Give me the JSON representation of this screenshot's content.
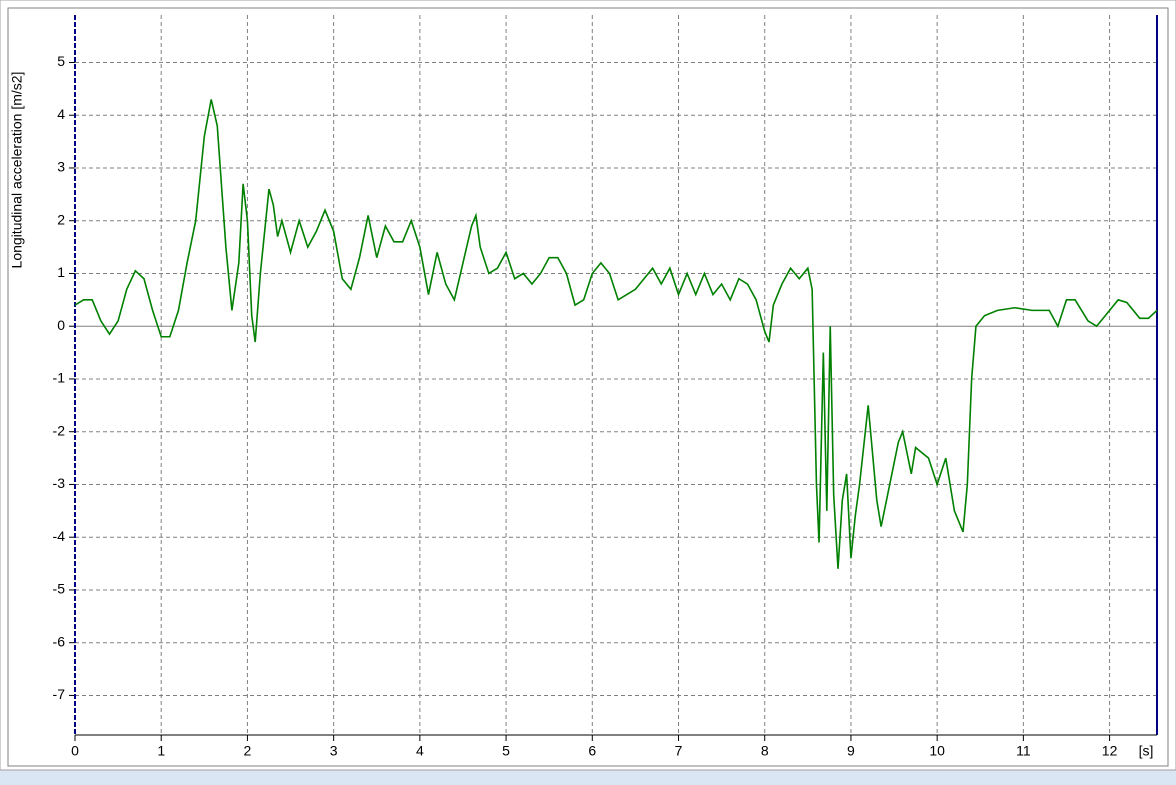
{
  "chart_data": {
    "type": "line",
    "ylabel": "Longitudinal acceleration [m/s2]",
    "xlabel": "[s]",
    "xlim": [
      0,
      12.55
    ],
    "ylim": [
      -7.75,
      5.9
    ],
    "xticks": [
      0,
      1,
      2,
      3,
      4,
      5,
      6,
      7,
      8,
      9,
      10,
      11,
      12
    ],
    "yticks": [
      -7,
      -6,
      -5,
      -4,
      -3,
      -2,
      -1,
      0,
      1,
      2,
      3,
      4,
      5
    ],
    "grid": true,
    "series": [
      {
        "color": "#008000",
        "x": [
          0,
          0.1,
          0.2,
          0.3,
          0.4,
          0.5,
          0.6,
          0.7,
          0.8,
          0.9,
          1.0,
          1.1,
          1.2,
          1.3,
          1.4,
          1.5,
          1.58,
          1.65,
          1.75,
          1.82,
          1.9,
          1.95,
          2.0,
          2.05,
          2.09,
          2.15,
          2.2,
          2.25,
          2.3,
          2.35,
          2.4,
          2.5,
          2.6,
          2.7,
          2.8,
          2.9,
          3.0,
          3.1,
          3.2,
          3.3,
          3.4,
          3.5,
          3.6,
          3.7,
          3.8,
          3.9,
          4.0,
          4.1,
          4.2,
          4.3,
          4.4,
          4.5,
          4.6,
          4.65,
          4.7,
          4.8,
          4.9,
          5.0,
          5.1,
          5.2,
          5.3,
          5.4,
          5.5,
          5.6,
          5.7,
          5.8,
          5.9,
          6.0,
          6.1,
          6.2,
          6.3,
          6.4,
          6.5,
          6.6,
          6.7,
          6.8,
          6.9,
          7.0,
          7.1,
          7.2,
          7.3,
          7.4,
          7.5,
          7.6,
          7.7,
          7.8,
          7.9,
          8.0,
          8.05,
          8.1,
          8.2,
          8.3,
          8.4,
          8.5,
          8.55,
          8.6,
          8.63,
          8.68,
          8.72,
          8.76,
          8.8,
          8.85,
          8.9,
          8.95,
          9.0,
          9.05,
          9.1,
          9.2,
          9.3,
          9.35,
          9.45,
          9.55,
          9.6,
          9.7,
          9.75,
          9.9,
          10.0,
          10.1,
          10.2,
          10.3,
          10.35,
          10.4,
          10.45,
          10.55,
          10.7,
          10.9,
          11.1,
          11.3,
          11.4,
          11.5,
          11.6,
          11.75,
          11.85,
          12.0,
          12.1,
          12.2,
          12.35,
          12.45,
          12.55
        ],
        "values": [
          0.4,
          0.5,
          0.5,
          0.1,
          -0.15,
          0.1,
          0.7,
          1.05,
          0.9,
          0.3,
          -0.2,
          -0.2,
          0.3,
          1.2,
          2.0,
          3.6,
          4.3,
          3.8,
          1.5,
          0.3,
          1.2,
          2.7,
          2.0,
          0.2,
          -0.3,
          1.0,
          1.8,
          2.6,
          2.3,
          1.7,
          2.0,
          1.4,
          2.0,
          1.5,
          1.8,
          2.2,
          1.8,
          0.9,
          0.7,
          1.3,
          2.1,
          1.3,
          1.9,
          1.6,
          1.6,
          2.0,
          1.5,
          0.6,
          1.4,
          0.8,
          0.5,
          1.2,
          1.9,
          2.1,
          1.5,
          1.0,
          1.1,
          1.4,
          0.9,
          1.0,
          0.8,
          1.0,
          1.3,
          1.3,
          1.0,
          0.4,
          0.5,
          1.0,
          1.2,
          1.0,
          0.5,
          0.6,
          0.7,
          0.9,
          1.1,
          0.8,
          1.1,
          0.6,
          1.0,
          0.6,
          1.0,
          0.6,
          0.8,
          0.5,
          0.9,
          0.8,
          0.5,
          -0.1,
          -0.3,
          0.4,
          0.8,
          1.1,
          0.9,
          1.1,
          0.7,
          -3.0,
          -4.1,
          -0.5,
          -3.5,
          0,
          -3.2,
          -4.6,
          -3.3,
          -2.8,
          -4.4,
          -3.6,
          -3.0,
          -1.5,
          -3.3,
          -3.8,
          -3.0,
          -2.2,
          -2.0,
          -2.8,
          -2.3,
          -2.5,
          -3.0,
          -2.5,
          -3.5,
          -3.9,
          -3.0,
          -1.0,
          0.0,
          0.2,
          0.3,
          0.35,
          0.3,
          0.3,
          0.0,
          0.5,
          0.5,
          0.1,
          0.0,
          0.3,
          0.5,
          0.45,
          0.15,
          0.15,
          0.3
        ]
      }
    ]
  }
}
